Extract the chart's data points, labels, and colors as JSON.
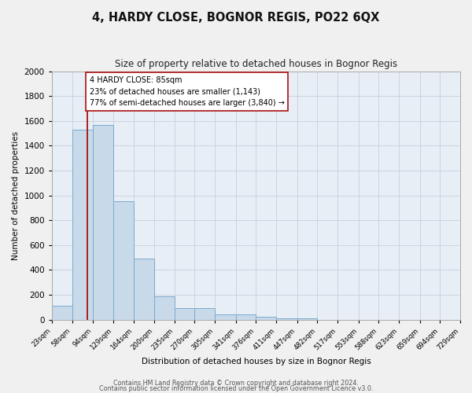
{
  "title": "4, HARDY CLOSE, BOGNOR REGIS, PO22 6QX",
  "subtitle": "Size of property relative to detached houses in Bognor Regis",
  "xlabel": "Distribution of detached houses by size in Bognor Regis",
  "ylabel": "Number of detached properties",
  "bar_color": "#c8d9ea",
  "bar_edge_color": "#7aabcc",
  "grid_color": "#c8d0dc",
  "bg_color": "#e8eef5",
  "fig_color": "#f0f0f0",
  "annotation_text": "4 HARDY CLOSE: 85sqm\n23% of detached houses are smaller (1,143)\n77% of semi-detached houses are larger (3,840) →",
  "red_line_x": 85,
  "bin_edges": [
    23,
    58,
    94,
    129,
    164,
    200,
    235,
    270,
    305,
    341,
    376,
    411,
    447,
    482,
    517,
    553,
    588,
    623,
    659,
    694,
    729
  ],
  "bin_labels": [
    "23sqm",
    "58sqm",
    "94sqm",
    "129sqm",
    "164sqm",
    "200sqm",
    "235sqm",
    "270sqm",
    "305sqm",
    "341sqm",
    "376sqm",
    "411sqm",
    "447sqm",
    "482sqm",
    "517sqm",
    "553sqm",
    "588sqm",
    "623sqm",
    "659sqm",
    "694sqm",
    "729sqm"
  ],
  "bar_heights": [
    110,
    1530,
    1570,
    950,
    490,
    185,
    95,
    95,
    40,
    40,
    20,
    10,
    10,
    0,
    0,
    0,
    0,
    0,
    0,
    0
  ],
  "ylim": [
    0,
    2000
  ],
  "yticks": [
    0,
    200,
    400,
    600,
    800,
    1000,
    1200,
    1400,
    1600,
    1800,
    2000
  ],
  "footer1": "Contains HM Land Registry data © Crown copyright and database right 2024.",
  "footer2": "Contains public sector information licensed under the Open Government Licence v3.0."
}
